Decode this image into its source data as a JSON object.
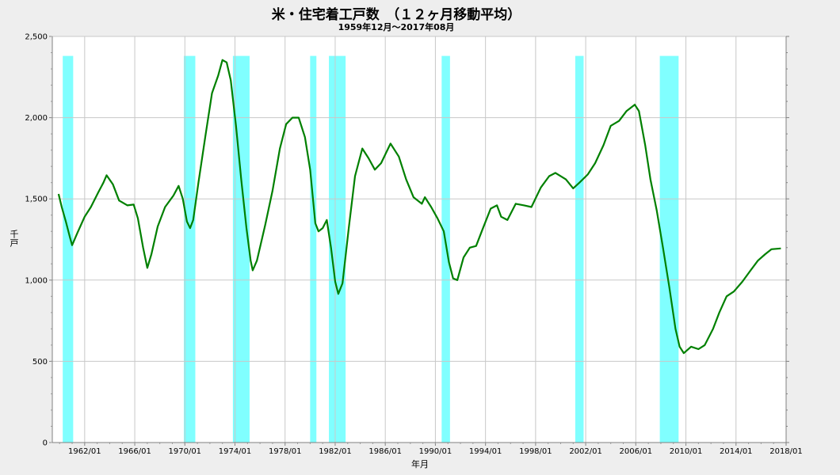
{
  "chart_data": {
    "type": "line",
    "title": "米・住宅着工戸数　（１２ヶ月移動平均）",
    "subtitle": "1959年12月～2017年08月",
    "xlabel": "年月",
    "ylabel": "千戸",
    "ylim": [
      0,
      2500
    ],
    "xlim": [
      "1959/06",
      "2018/01"
    ],
    "y_ticks": [
      "0",
      "500",
      "1,000",
      "1,500",
      "2,000",
      "2,500"
    ],
    "x_ticks": [
      "1962/01",
      "1966/01",
      "1970/01",
      "1974/01",
      "1978/01",
      "1982/01",
      "1986/01",
      "1990/01",
      "1994/01",
      "1998/01",
      "2002/01",
      "2006/01",
      "2010/01",
      "2014/01",
      "2018/01"
    ],
    "grid": true,
    "line_color": "#008000",
    "recession_color": "#80ffff",
    "recessions": [
      [
        "1960/04",
        "1961/02"
      ],
      [
        "1969/12",
        "1970/11"
      ],
      [
        "1973/11",
        "1975/03"
      ],
      [
        "1980/01",
        "1980/07"
      ],
      [
        "1981/07",
        "1982/11"
      ],
      [
        "1990/07",
        "1991/03"
      ],
      [
        "2001/03",
        "2001/11"
      ],
      [
        "2007/12",
        "2009/06"
      ]
    ],
    "series": [
      {
        "values": [
          [
            "1959/12",
            1530
          ],
          [
            "1960/03",
            1450
          ],
          [
            "1960/07",
            1360
          ],
          [
            "1960/11",
            1260
          ],
          [
            "1961/01",
            1215
          ],
          [
            "1961/06",
            1290
          ],
          [
            "1962/01",
            1390
          ],
          [
            "1962/07",
            1450
          ],
          [
            "1963/02",
            1540
          ],
          [
            "1963/07",
            1600
          ],
          [
            "1963/10",
            1645
          ],
          [
            "1964/04",
            1590
          ],
          [
            "1964/10",
            1490
          ],
          [
            "1965/06",
            1460
          ],
          [
            "1965/12",
            1465
          ],
          [
            "1966/04",
            1380
          ],
          [
            "1966/09",
            1200
          ],
          [
            "1967/01",
            1075
          ],
          [
            "1967/05",
            1160
          ],
          [
            "1967/11",
            1330
          ],
          [
            "1968/06",
            1450
          ],
          [
            "1969/02",
            1520
          ],
          [
            "1969/07",
            1580
          ],
          [
            "1969/11",
            1500
          ],
          [
            "1970/03",
            1360
          ],
          [
            "1970/06",
            1320
          ],
          [
            "1970/09",
            1370
          ],
          [
            "1971/02",
            1600
          ],
          [
            "1971/09",
            1900
          ],
          [
            "1972/03",
            2150
          ],
          [
            "1972/09",
            2260
          ],
          [
            "1973/01",
            2355
          ],
          [
            "1973/05",
            2340
          ],
          [
            "1973/09",
            2230
          ],
          [
            "1974/02",
            1950
          ],
          [
            "1974/07",
            1620
          ],
          [
            "1974/12",
            1320
          ],
          [
            "1975/04",
            1120
          ],
          [
            "1975/06",
            1060
          ],
          [
            "1975/10",
            1120
          ],
          [
            "1976/06",
            1340
          ],
          [
            "1977/01",
            1550
          ],
          [
            "1977/08",
            1810
          ],
          [
            "1978/02",
            1960
          ],
          [
            "1978/08",
            2000
          ],
          [
            "1979/02",
            2000
          ],
          [
            "1979/08",
            1880
          ],
          [
            "1980/01",
            1680
          ],
          [
            "1980/06",
            1350
          ],
          [
            "1980/09",
            1300
          ],
          [
            "1981/01",
            1320
          ],
          [
            "1981/05",
            1370
          ],
          [
            "1981/09",
            1200
          ],
          [
            "1982/01",
            990
          ],
          [
            "1982/04",
            915
          ],
          [
            "1982/08",
            980
          ],
          [
            "1983/02",
            1320
          ],
          [
            "1983/08",
            1640
          ],
          [
            "1984/03",
            1810
          ],
          [
            "1984/09",
            1750
          ],
          [
            "1985/03",
            1680
          ],
          [
            "1985/09",
            1720
          ],
          [
            "1986/06",
            1840
          ],
          [
            "1987/02",
            1760
          ],
          [
            "1987/09",
            1620
          ],
          [
            "1988/04",
            1510
          ],
          [
            "1988/12",
            1470
          ],
          [
            "1989/03",
            1510
          ],
          [
            "1989/09",
            1450
          ],
          [
            "1990/03",
            1380
          ],
          [
            "1990/09",
            1300
          ],
          [
            "1991/02",
            1110
          ],
          [
            "1991/06",
            1010
          ],
          [
            "1991/10",
            1000
          ],
          [
            "1992/04",
            1140
          ],
          [
            "1992/10",
            1200
          ],
          [
            "1993/04",
            1210
          ],
          [
            "1993/10",
            1310
          ],
          [
            "1994/06",
            1440
          ],
          [
            "1994/12",
            1460
          ],
          [
            "1995/04",
            1390
          ],
          [
            "1995/10",
            1370
          ],
          [
            "1996/06",
            1470
          ],
          [
            "1997/02",
            1460
          ],
          [
            "1997/09",
            1450
          ],
          [
            "1998/06",
            1570
          ],
          [
            "1999/02",
            1640
          ],
          [
            "1999/08",
            1660
          ],
          [
            "2000/06",
            1620
          ],
          [
            "2001/01",
            1565
          ],
          [
            "2001/07",
            1600
          ],
          [
            "2002/03",
            1650
          ],
          [
            "2002/10",
            1720
          ],
          [
            "2003/06",
            1830
          ],
          [
            "2004/01",
            1950
          ],
          [
            "2004/09",
            1980
          ],
          [
            "2005/04",
            2040
          ],
          [
            "2005/12",
            2080
          ],
          [
            "2006/04",
            2040
          ],
          [
            "2006/10",
            1830
          ],
          [
            "2007/03",
            1620
          ],
          [
            "2007/09",
            1430
          ],
          [
            "2008/03",
            1200
          ],
          [
            "2008/09",
            960
          ],
          [
            "2009/03",
            700
          ],
          [
            "2009/07",
            590
          ],
          [
            "2009/11",
            550
          ],
          [
            "2010/06",
            590
          ],
          [
            "2011/01",
            575
          ],
          [
            "2011/07",
            600
          ],
          [
            "2012/03",
            700
          ],
          [
            "2012/09",
            800
          ],
          [
            "2013/04",
            900
          ],
          [
            "2013/11",
            930
          ],
          [
            "2014/07",
            990
          ],
          [
            "2015/03",
            1060
          ],
          [
            "2015/10",
            1120
          ],
          [
            "2016/05",
            1160
          ],
          [
            "2016/11",
            1190
          ],
          [
            "2017/08",
            1195
          ]
        ]
      }
    ]
  }
}
